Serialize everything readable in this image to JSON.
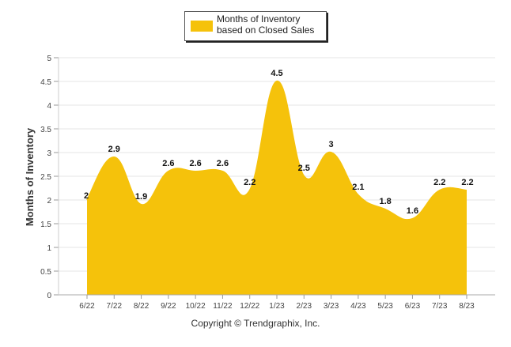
{
  "chart_data": {
    "type": "area",
    "categories": [
      "6/22",
      "7/22",
      "8/22",
      "9/22",
      "10/22",
      "11/22",
      "12/22",
      "1/23",
      "2/23",
      "3/23",
      "4/23",
      "5/23",
      "6/23",
      "7/23",
      "8/23"
    ],
    "series": [
      {
        "name": "Months of Inventory based on Closed Sales",
        "values": [
          2,
          2.9,
          1.9,
          2.6,
          2.6,
          2.6,
          2.2,
          4.5,
          2.5,
          3,
          2.1,
          1.8,
          1.6,
          2.2,
          2.2
        ],
        "data_labels": [
          "2",
          "2.9",
          "1.9",
          "2.6",
          "2.6",
          "2.6",
          "2.2",
          "4.5",
          "2.5",
          "3",
          "2.1",
          "1.8",
          "1.6",
          "2.2",
          "2.2"
        ],
        "color": "#f5c20b"
      }
    ],
    "ylabel": "Months of Inventory",
    "xlabel": "",
    "ylim": [
      0,
      5
    ],
    "yticks": [
      "0",
      "0.5",
      "1",
      "1.5",
      "2",
      "2.5",
      "3",
      "3.5",
      "4",
      "4.5",
      "5"
    ],
    "grid": true,
    "legend_position": "top-center"
  },
  "legend": {
    "label": "Months of Inventory based on Closed Sales",
    "color": "#f5c20b"
  },
  "footer": {
    "copyright": "Copyright © Trendgraphix, Inc."
  }
}
